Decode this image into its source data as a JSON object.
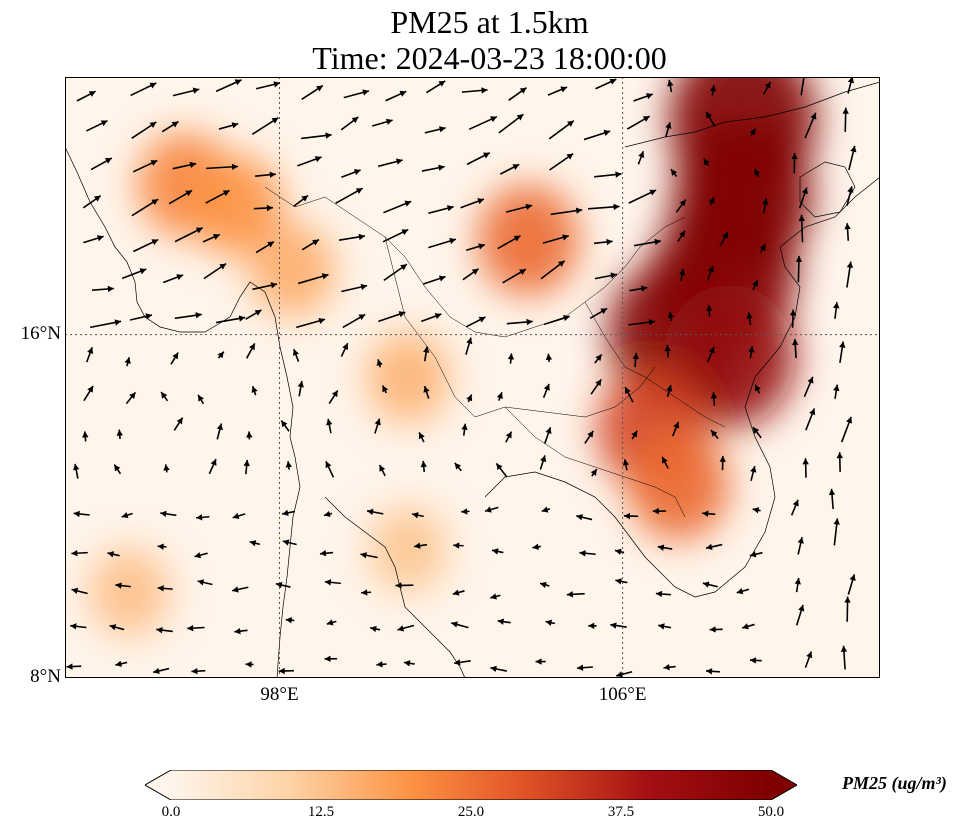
{
  "title_line1": "PM25 at 1.5km",
  "title_line2": "Time: 2024-03-23 18:00:00",
  "lat_ticks": [
    {
      "value": 16,
      "label": "16°N"
    },
    {
      "value": 8,
      "label": "8°N"
    }
  ],
  "lon_ticks": [
    {
      "value": 98,
      "label": "98°E"
    },
    {
      "value": 106,
      "label": "106°E"
    }
  ],
  "extent": {
    "lon_min": 93,
    "lon_max": 112,
    "lat_min": 8,
    "lat_max": 22
  },
  "colorbar": {
    "label": "PM25 (ug/m³)",
    "ticks": [
      "0.0",
      "12.5",
      "25.0",
      "37.5",
      "50.0"
    ],
    "vmin": 0,
    "vmax": 50,
    "colormap": [
      "#fff5eb",
      "#fdd2a5",
      "#fd9243",
      "#df4f25",
      "#a30f13",
      "#7f0000"
    ]
  },
  "pm25_hotspots": [
    {
      "lon": 108.8,
      "lat": 21.0,
      "value": 55
    },
    {
      "lon": 108.8,
      "lat": 19.2,
      "value": 50
    },
    {
      "lon": 108.4,
      "lat": 17.5,
      "value": 52
    },
    {
      "lon": 107.3,
      "lat": 16.0,
      "value": 50
    },
    {
      "lon": 108.5,
      "lat": 15.5,
      "value": 44
    },
    {
      "lon": 106.7,
      "lat": 13.8,
      "value": 32
    },
    {
      "lon": 107.3,
      "lat": 12.5,
      "value": 26
    },
    {
      "lon": 103.8,
      "lat": 18.2,
      "value": 26
    },
    {
      "lon": 95.8,
      "lat": 19.5,
      "value": 22
    },
    {
      "lon": 97.0,
      "lat": 19.0,
      "value": 20
    },
    {
      "lon": 98.3,
      "lat": 17.5,
      "value": 16
    },
    {
      "lon": 101.0,
      "lat": 15.0,
      "value": 15
    },
    {
      "lon": 94.5,
      "lat": 10.0,
      "value": 13
    },
    {
      "lon": 101.0,
      "lat": 11.0,
      "value": 12
    }
  ]
}
